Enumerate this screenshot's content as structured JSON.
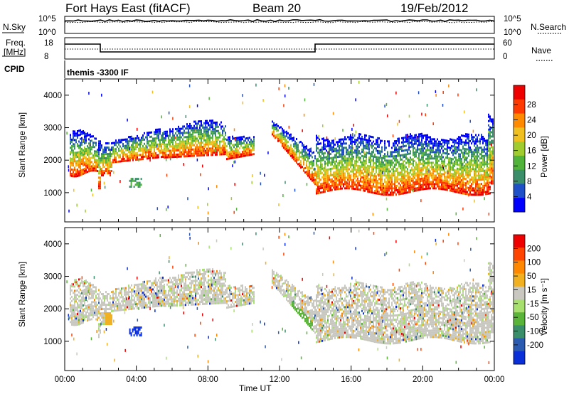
{
  "header": {
    "station": "Fort Hays East (fitACF)",
    "beam": "Beam 20",
    "date": "19/Feb/2012"
  },
  "status_panels": {
    "nsky_label": "N.Sky",
    "nsearch_label": "N.Search",
    "freq_label_1": "Freq.",
    "freq_label_2": "[MHz]",
    "nave_label": "Nave",
    "cpid_label": "CPID",
    "cpid_value": "themis -3300 IF",
    "noise_ticks": [
      "10^5",
      "10^0"
    ],
    "noise_right_ticks": [
      "10^5",
      "10^0"
    ],
    "freq_ticks": [
      "18",
      "8"
    ],
    "nave_ticks": [
      "60",
      "0"
    ]
  },
  "chart_data": [
    {
      "type": "heatmap",
      "name": "power",
      "ylabel": "Slant Range [km]",
      "yticks": [
        "1000",
        "2000",
        "3000",
        "4000"
      ],
      "xlabel": "Time UT",
      "xticks": [
        "00:00",
        "04:00",
        "08:00",
        "12:00",
        "16:00",
        "20:00",
        "00:00"
      ],
      "colorbar_label": "Power [dB]",
      "colorbar_ticks": [
        "4",
        "8",
        "12",
        "16",
        "20",
        "24",
        "28"
      ],
      "colors": [
        "#0000ff",
        "#2050c8",
        "#3a8f6a",
        "#52b33a",
        "#a0cc30",
        "#f0c020",
        "#ff8a00",
        "#ff3a00",
        "#ee0000"
      ]
    },
    {
      "type": "heatmap",
      "name": "velocity",
      "ylabel": "Slant Range [km]",
      "yticks": [
        "1000",
        "2000",
        "3000",
        "4000"
      ],
      "xlabel": "Time UT",
      "xticks": [
        "00:00",
        "04:00",
        "08:00",
        "12:00",
        "16:00",
        "20:00",
        "00:00"
      ],
      "colorbar_label": "Velocity [m s⁻¹]",
      "colorbar_ticks": [
        "200",
        "100",
        "50",
        "15",
        "-15",
        "-50",
        "-100",
        "-200"
      ],
      "colors": [
        "#0a2ed8",
        "#2b5bb0",
        "#3a8f6a",
        "#5ab43a",
        "#a8e070",
        "#c8c8c0",
        "#f0b020",
        "#ff8800",
        "#ff4400",
        "#ee0000"
      ]
    }
  ]
}
